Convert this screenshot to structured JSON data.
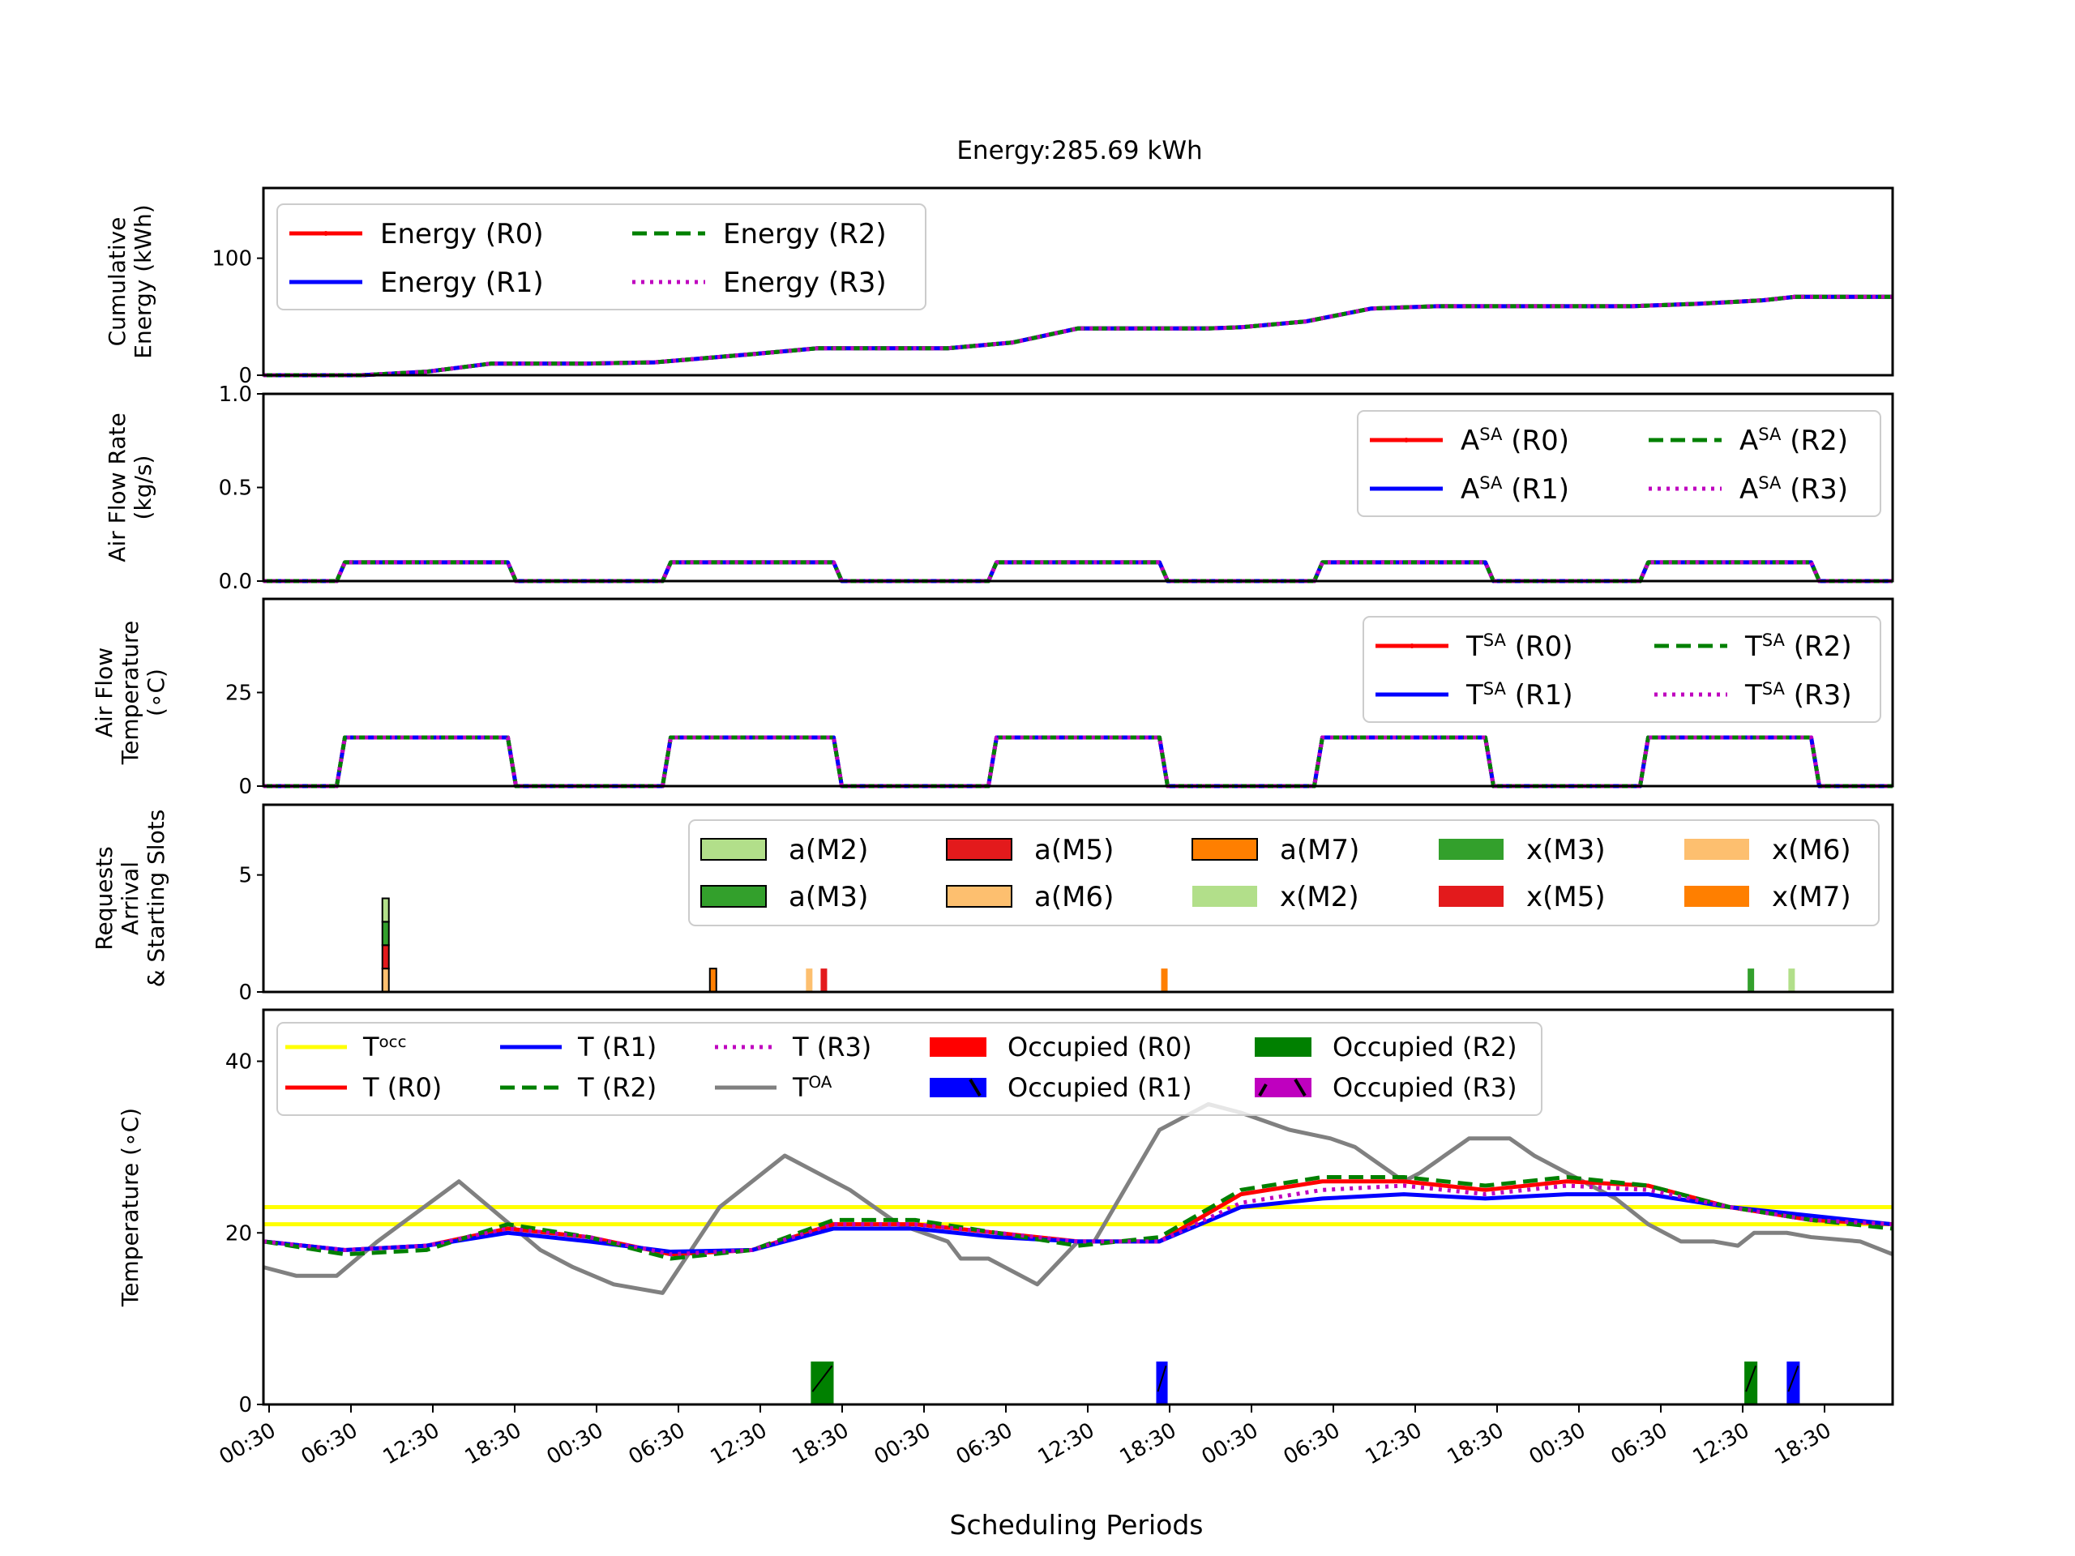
{
  "title": "Energy:285.69 kWh",
  "xlabel": "Scheduling Periods",
  "x_ticks": [
    "00:30",
    "06:30",
    "12:30",
    "18:30",
    "00:30",
    "06:30",
    "12:30",
    "18:30",
    "00:30",
    "06:30",
    "12:30",
    "18:30",
    "00:30",
    "06:30",
    "12:30",
    "18:30",
    "00:30",
    "06:30",
    "12:30",
    "18:30"
  ],
  "colors": {
    "R0": "#ff0000",
    "R1": "#0000ff",
    "R2": "#008000",
    "R3": "#bf00bf",
    "Tocc": "#ffff00",
    "TOA": "#808080"
  },
  "chart_data": [
    {
      "id": "energy",
      "type": "line",
      "ylabel_lines": [
        "Cumulative",
        "Energy (kWh)"
      ],
      "ylim": [
        0,
        160
      ],
      "yticks": [
        0,
        100
      ],
      "x_range": [
        0,
        100
      ],
      "legend_position": "upper-left",
      "legend": [
        "Energy (R0)",
        "Energy (R1)",
        "Energy (R2)",
        "Energy (R3)"
      ],
      "x": [
        0,
        6,
        10,
        14,
        18,
        20,
        24,
        30,
        34,
        38,
        42,
        46,
        50,
        54,
        58,
        60,
        64,
        68,
        72,
        76,
        80,
        84,
        88,
        92,
        94,
        98,
        100
      ],
      "values": [
        0,
        0,
        3,
        10,
        10,
        10,
        11,
        18,
        23,
        23,
        23,
        28,
        40,
        40,
        40,
        41,
        46,
        57,
        59,
        59,
        59,
        59,
        61,
        64,
        67,
        67,
        67
      ]
    },
    {
      "id": "airflow",
      "type": "line",
      "ylabel_lines": [
        "Air Flow Rate",
        "(kg/s)"
      ],
      "ylim": [
        0,
        1.0
      ],
      "yticks": [
        0.0,
        0.5,
        1.0
      ],
      "x_range": [
        0,
        100
      ],
      "legend_position": "upper-right",
      "legend": [
        "A<sup>SA</sup> (R0)",
        "A<sup>SA</sup> (R1)",
        "A<sup>SA</sup> (R2)",
        "A<sup>SA</sup> (R3)"
      ],
      "x": [
        0,
        4.5,
        5.0,
        15.0,
        15.5,
        24.5,
        25.0,
        35.0,
        35.5,
        44.5,
        45.0,
        55.0,
        55.5,
        64.5,
        65.0,
        75.0,
        75.5,
        84.5,
        85.0,
        95.0,
        95.5,
        100
      ],
      "values": [
        0,
        0,
        0.1,
        0.1,
        0,
        0,
        0.1,
        0.1,
        0,
        0,
        0.1,
        0.1,
        0,
        0,
        0.1,
        0.1,
        0,
        0,
        0.1,
        0.1,
        0,
        0
      ]
    },
    {
      "id": "supply_temp",
      "type": "line",
      "ylabel_lines": [
        "Air Flow",
        "Temperature",
        "(∘C)"
      ],
      "ylim": [
        0,
        50
      ],
      "yticks": [
        0,
        25
      ],
      "x_range": [
        0,
        100
      ],
      "legend_position": "upper-right",
      "legend": [
        "T<sup>SA</sup> (R0)",
        "T<sup>SA</sup> (R1)",
        "T<sup>SA</sup> (R2)",
        "T<sup>SA</sup> (R3)"
      ],
      "x": [
        0,
        4.5,
        5.0,
        15.0,
        15.5,
        24.5,
        25.0,
        35.0,
        35.5,
        44.5,
        45.0,
        55.0,
        55.5,
        64.5,
        65.0,
        75.0,
        75.5,
        84.5,
        85.0,
        95.0,
        95.5,
        100
      ],
      "values": [
        0,
        0,
        13,
        13,
        0,
        0,
        13,
        13,
        0,
        0,
        13,
        13,
        0,
        0,
        13,
        13,
        0,
        0,
        13,
        13,
        0,
        0
      ]
    },
    {
      "id": "requests",
      "type": "bar",
      "ylabel_lines": [
        "Requests",
        "Arrival",
        "& Starting Slots"
      ],
      "ylim": [
        0,
        8
      ],
      "yticks": [
        0,
        5
      ],
      "x_range": [
        0,
        100
      ],
      "legend_position": "upper-right",
      "legend": [
        "a(M2)",
        "a(M5)",
        "a(M7)",
        "x(M3)",
        "x(M6)",
        "a(M3)",
        "a(M6)",
        "x(M2)",
        "x(M5)",
        "x(M7)"
      ],
      "legend_colors": [
        "#b2df8a",
        "#e31a1c",
        "#ff7f00",
        "#33a02c",
        "#fdbf6f",
        "#33a02c",
        "#fdbf6f",
        "#b2df8a",
        "#e31a1c",
        "#ff7f00"
      ],
      "legend_outlined": [
        true,
        true,
        true,
        false,
        false,
        true,
        true,
        false,
        false,
        false
      ],
      "stacks": [
        {
          "x": 7.5,
          "segments": [
            {
              "label": "a(M6)",
              "value": 1
            },
            {
              "label": "a(M5)",
              "value": 1
            },
            {
              "label": "a(M3)",
              "value": 1
            },
            {
              "label": "a(M2)",
              "value": 1
            }
          ]
        },
        {
          "x": 27.6,
          "segments": [
            {
              "label": "a(M7)",
              "value": 1
            }
          ]
        },
        {
          "x": 33.5,
          "segments": [
            {
              "label": "x(M6)",
              "value": 1
            }
          ]
        },
        {
          "x": 34.4,
          "segments": [
            {
              "label": "x(M5)",
              "value": 1
            }
          ]
        },
        {
          "x": 55.3,
          "segments": [
            {
              "label": "x(M7)",
              "value": 1
            }
          ]
        },
        {
          "x": 91.3,
          "segments": [
            {
              "label": "x(M3)",
              "value": 1
            }
          ]
        },
        {
          "x": 93.8,
          "segments": [
            {
              "label": "x(M2)",
              "value": 1
            }
          ]
        }
      ]
    },
    {
      "id": "room_temp",
      "type": "line",
      "ylabel_lines": [
        "Temperature (∘C)"
      ],
      "ylim": [
        0,
        46
      ],
      "yticks": [
        0,
        20,
        40
      ],
      "x_range": [
        0,
        100
      ],
      "legend_position": "upper-left",
      "legend": [
        "T<sup>occ</sup>",
        "T (R1)",
        "T (R3)",
        "Occupied (R0)",
        "Occupied (R2)",
        "T (R0)",
        "T (R2)",
        "T<sup>OA</sup>",
        "Occupied (R1)",
        "Occupied (R3)"
      ],
      "comfort_band": [
        21,
        23
      ],
      "series": [
        {
          "name": "T (R0)",
          "x": [
            0,
            5,
            10,
            15,
            20,
            25,
            30,
            35,
            40,
            45,
            50,
            55,
            60,
            65,
            70,
            75,
            80,
            85,
            90,
            95,
            100
          ],
          "values": [
            19,
            18,
            18.5,
            20.5,
            19.5,
            17.5,
            18,
            21,
            21,
            20,
            19,
            19,
            24.5,
            26,
            26,
            25,
            26,
            25.5,
            23,
            21.5,
            21
          ]
        },
        {
          "name": "T (R1)",
          "x": [
            0,
            5,
            10,
            15,
            20,
            25,
            30,
            35,
            40,
            45,
            50,
            55,
            60,
            65,
            70,
            75,
            80,
            85,
            90,
            95,
            100
          ],
          "values": [
            19,
            18,
            18.5,
            20,
            19,
            17.8,
            18,
            20.5,
            20.5,
            19.5,
            19,
            19,
            23,
            24,
            24.5,
            24,
            24.5,
            24.5,
            23,
            22,
            21
          ]
        },
        {
          "name": "T (R2)",
          "x": [
            0,
            5,
            10,
            15,
            20,
            25,
            30,
            35,
            40,
            45,
            50,
            55,
            60,
            65,
            70,
            75,
            80,
            85,
            90,
            95,
            100
          ],
          "values": [
            19,
            17.5,
            18,
            21,
            19.5,
            17,
            18,
            21.5,
            21.5,
            20,
            18.5,
            19.5,
            25,
            26.5,
            26.5,
            25.5,
            26.5,
            25.5,
            23,
            21.5,
            20.5
          ]
        },
        {
          "name": "T (R3)",
          "x": [
            0,
            5,
            10,
            15,
            20,
            25,
            30,
            35,
            40,
            45,
            50,
            55,
            60,
            65,
            70,
            75,
            80,
            85,
            90,
            95,
            100
          ],
          "values": [
            19,
            18,
            18.5,
            20.5,
            19.5,
            17.5,
            18,
            21,
            21,
            20,
            19,
            19,
            23.5,
            25,
            25.5,
            24.5,
            25.5,
            25,
            23,
            21.5,
            21
          ]
        },
        {
          "name": "T<sup>OA</sup>",
          "x": [
            0,
            2,
            4.5,
            7,
            12,
            17,
            19,
            21.5,
            24.5,
            28,
            32,
            36,
            39,
            42,
            42.8,
            44.5,
            47.5,
            50,
            51,
            55,
            58,
            60,
            63,
            65.5,
            67,
            68.5,
            70,
            71,
            74,
            76.5,
            78,
            81,
            83,
            85,
            87,
            89,
            90.5,
            91.5,
            93.5,
            95,
            98,
            100
          ],
          "values": [
            16,
            15,
            15,
            19,
            26,
            18,
            16,
            14,
            13,
            23,
            29,
            25,
            21,
            19,
            17,
            17,
            14,
            19,
            19,
            32,
            35,
            34,
            32,
            31,
            30,
            28,
            26,
            27,
            31,
            31,
            29,
            26,
            24,
            21,
            19,
            19,
            18.5,
            20,
            20,
            19.5,
            19,
            17.5
          ]
        }
      ],
      "occupied": [
        {
          "name": "Occupied (R2)",
          "x": [
            33.6,
            35.0
          ],
          "values": [
            5,
            5
          ]
        },
        {
          "name": "Occupied (R1)",
          "x": [
            54.8,
            55.5
          ],
          "values": [
            5,
            5
          ]
        },
        {
          "name": "Occupied (R2)",
          "x": [
            90.9,
            91.7
          ],
          "values": [
            5,
            5
          ]
        },
        {
          "name": "Occupied (R1)",
          "x": [
            93.5,
            94.3
          ],
          "values": [
            5,
            5
          ]
        }
      ]
    }
  ]
}
